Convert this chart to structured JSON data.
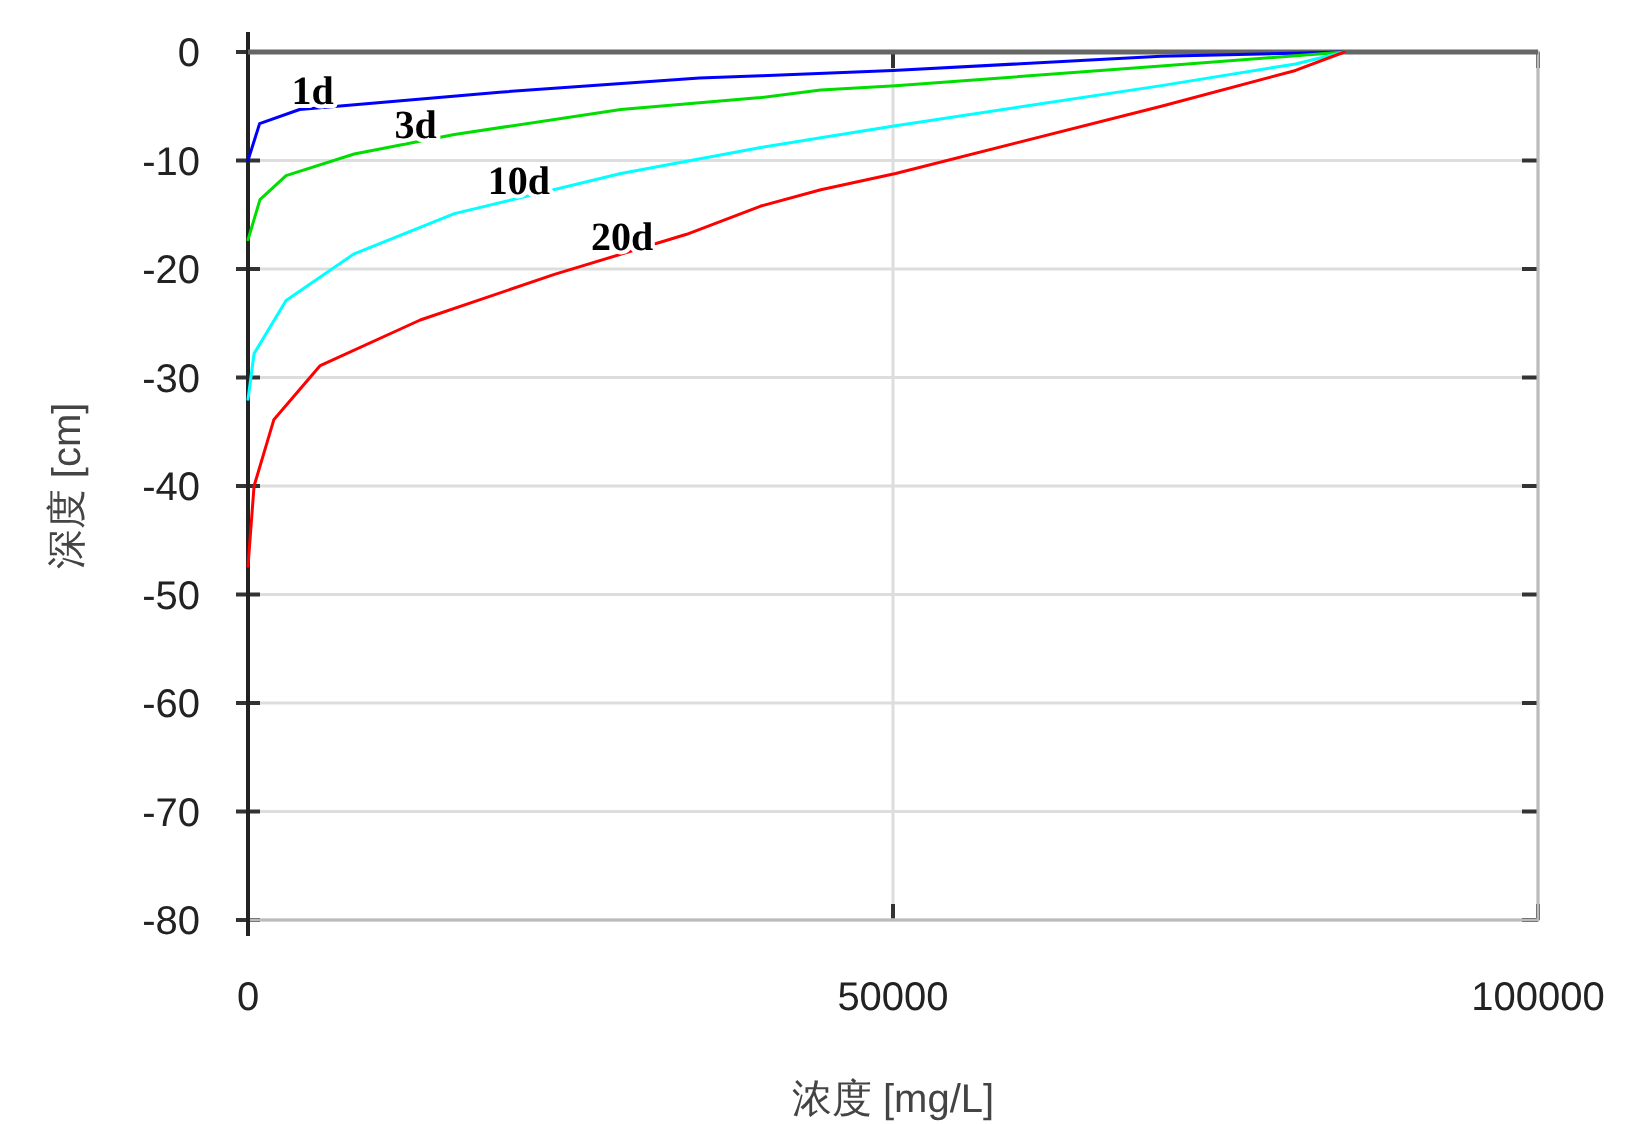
{
  "chart_data": {
    "type": "line",
    "xlabel": "浓度 [mg/L]",
    "ylabel": "深度 [cm]",
    "xlim": [
      0,
      100000
    ],
    "ylim": [
      -80,
      0
    ],
    "xticks": [
      0,
      50000,
      100000
    ],
    "yticks": [
      0,
      -10,
      -20,
      -30,
      -40,
      -50,
      -60,
      -70,
      -80
    ],
    "grid": true,
    "series": [
      {
        "name": "1d",
        "color": "#0000ff",
        "x": [
          0,
          900,
          4000,
          19500,
          35000,
          39750,
          50000,
          66000,
          70800,
          85000
        ],
        "values": [
          -10,
          -6.6,
          -5.3,
          -3.7,
          -2.4,
          -2.2,
          -1.7,
          -0.7,
          -0.4,
          0
        ]
      },
      {
        "name": "3d",
        "color": "#00dd00",
        "x": [
          0,
          930,
          2950,
          8230,
          16000,
          28900,
          39750,
          44400,
          50200,
          70800,
          85000
        ],
        "values": [
          -17.3,
          -13.6,
          -11.4,
          -9.4,
          -7.6,
          -5.3,
          -4.2,
          -3.5,
          -3.1,
          -1.3,
          0
        ]
      },
      {
        "name": "10d",
        "color": "#00ffff",
        "x": [
          0,
          470,
          2950,
          8230,
          16000,
          28900,
          39750,
          44400,
          50200,
          70800,
          81200,
          85000
        ],
        "values": [
          -32,
          -27.8,
          -22.9,
          -18.6,
          -14.9,
          -11.2,
          -8.8,
          -7.9,
          -6.8,
          -3.1,
          -1.1,
          0
        ]
      },
      {
        "name": "20d",
        "color": "#ff0000",
        "x": [
          0,
          470,
          2000,
          5600,
          13350,
          23750,
          34000,
          39750,
          44400,
          50200,
          70800,
          81200,
          85000
        ],
        "values": [
          -47.4,
          -40,
          -33.9,
          -28.9,
          -24.7,
          -20.5,
          -16.8,
          -14.2,
          -12.7,
          -11.2,
          -5.0,
          -1.7,
          0
        ]
      }
    ]
  }
}
